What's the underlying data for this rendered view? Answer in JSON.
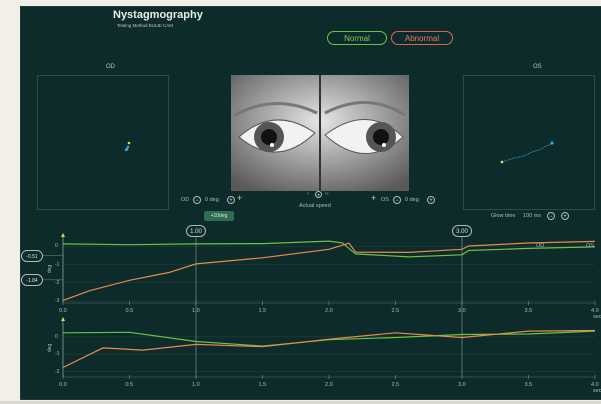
{
  "header": {
    "title": "Nystagmography",
    "subtitle": "Testing Method BULBI CAM"
  },
  "legend": {
    "normal_label": "Normal",
    "abnormal_label": "Abnormal",
    "normal_color": "#6fc043",
    "abnormal_color": "#e0634e"
  },
  "eyes": {
    "od_label": "OD",
    "os_label": "OS"
  },
  "controls": {
    "od_label": "OD",
    "od_value": "0 deg",
    "os_label": "OS",
    "os_value": "0 deg",
    "plus10_label": "+10deg",
    "speed_label": "Actual speed",
    "glow_label": "Glow time",
    "glow_value": "100 ms"
  },
  "chart_data": [
    {
      "type": "line",
      "xlim": [
        0,
        4
      ],
      "x_ticks": [
        "0.0",
        "0.5",
        "1.0",
        "1.5",
        "2.0",
        "2.5",
        "3.0",
        "3.5",
        "4.0"
      ],
      "x_unit": "sec",
      "ylabel": "deg",
      "y_ticks": [
        "0",
        "-1",
        "-2",
        "-3"
      ],
      "ylim": [
        -3,
        0.4
      ],
      "markers": [
        "1.00",
        "3.00"
      ],
      "value_tags": [
        "-0.51",
        "-1.84"
      ],
      "series_colors": [
        "#6fc043",
        "#e68a4e"
      ],
      "inline_labels": [
        "OD",
        "OS"
      ],
      "green_points": [
        [
          0,
          0.1
        ],
        [
          0.5,
          0.12
        ],
        [
          1.0,
          0.1
        ],
        [
          1.5,
          0.18
        ],
        [
          2.0,
          0.25
        ],
        [
          2.1,
          0.22
        ],
        [
          2.2,
          -0.45
        ],
        [
          2.6,
          -0.55
        ],
        [
          3.0,
          -0.5
        ],
        [
          3.05,
          -0.2
        ],
        [
          3.5,
          -0.15
        ],
        [
          4.0,
          0
        ]
      ],
      "orange_points": [
        [
          0,
          -3
        ],
        [
          0.2,
          -2.4
        ],
        [
          0.5,
          -1.9
        ],
        [
          0.8,
          -1.4
        ],
        [
          1.0,
          -1.0
        ],
        [
          1.5,
          -0.6
        ],
        [
          2.0,
          -0.2
        ],
        [
          2.15,
          0.2
        ],
        [
          2.2,
          -0.35
        ],
        [
          2.6,
          -0.3
        ],
        [
          3.0,
          -0.2
        ],
        [
          3.05,
          0.05
        ],
        [
          3.5,
          0.15
        ],
        [
          4.0,
          0.3
        ]
      ]
    },
    {
      "type": "line",
      "xlim": [
        0,
        4
      ],
      "x_ticks": [
        "0.0",
        "0.5",
        "1.0",
        "1.5",
        "2.0",
        "2.5",
        "3.0",
        "3.5",
        "4.0"
      ],
      "x_unit": "sec",
      "ylabel": "deg",
      "y_ticks": [
        "0",
        "-1",
        "-2"
      ],
      "ylim": [
        -2.2,
        0.8
      ],
      "series_colors": [
        "#6fc043",
        "#e68a4e"
      ],
      "green_points": [
        [
          0,
          0.2
        ],
        [
          0.5,
          0.3
        ],
        [
          1.0,
          -0.3
        ],
        [
          1.5,
          -0.5
        ],
        [
          2.0,
          -0.2
        ],
        [
          2.5,
          0.0
        ],
        [
          3.0,
          0.1
        ],
        [
          3.5,
          0.2
        ],
        [
          4.0,
          0.3
        ]
      ],
      "orange_points": [
        [
          0,
          -1.8
        ],
        [
          0.3,
          -0.6
        ],
        [
          0.6,
          -0.8
        ],
        [
          1.0,
          -0.4
        ],
        [
          1.5,
          -0.6
        ],
        [
          2.0,
          -0.1
        ],
        [
          2.5,
          0.2
        ],
        [
          3.0,
          0.0
        ],
        [
          3.5,
          0.3
        ],
        [
          4.0,
          0.4
        ]
      ]
    }
  ]
}
